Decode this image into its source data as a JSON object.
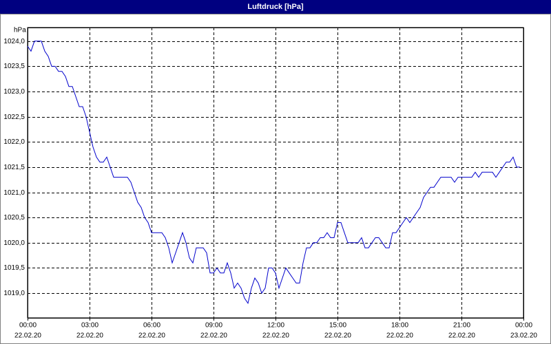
{
  "chart_data": {
    "type": "line",
    "title": "Luftdruck [hPa]",
    "y_label": "hPa",
    "x": [
      0,
      10,
      20,
      30,
      40,
      50,
      60,
      70,
      80,
      90,
      100,
      110,
      120,
      130,
      140,
      150,
      160,
      170,
      180,
      190,
      200,
      210,
      220,
      230,
      240,
      250,
      260,
      270,
      280,
      290,
      300,
      310,
      320,
      330,
      340,
      350,
      360,
      370,
      380,
      390,
      400,
      410,
      420,
      430,
      440,
      450,
      460,
      470,
      480,
      490,
      500,
      510,
      520,
      530,
      540,
      550,
      560,
      570,
      580,
      590,
      600,
      610,
      620,
      630,
      640,
      650,
      660,
      670,
      680,
      690,
      700,
      710,
      720,
      730,
      740,
      750,
      760,
      770,
      780,
      790,
      800,
      810,
      820,
      830,
      840,
      850,
      860,
      870,
      880,
      890,
      900,
      910,
      920,
      930,
      940,
      950,
      960,
      970,
      980,
      990,
      1000,
      1010,
      1020,
      1030,
      1040,
      1050,
      1060,
      1070,
      1080,
      1090,
      1100,
      1110,
      1120,
      1130,
      1140,
      1150,
      1160,
      1170,
      1180,
      1190,
      1200,
      1210,
      1220,
      1230,
      1240,
      1250,
      1260,
      1270,
      1280,
      1290,
      1300,
      1310,
      1320,
      1330,
      1340,
      1350,
      1360,
      1370,
      1380,
      1390,
      1400,
      1410,
      1420,
      1430
    ],
    "series": [
      {
        "color": "#0000cc",
        "values": [
          1023.9,
          1023.8,
          1024.0,
          1024.0,
          1024.0,
          1023.8,
          1023.7,
          1023.5,
          1023.5,
          1023.4,
          1023.4,
          1023.3,
          1023.1,
          1023.1,
          1022.9,
          1022.7,
          1022.7,
          1022.5,
          1022.2,
          1021.9,
          1021.7,
          1021.6,
          1021.6,
          1021.7,
          1021.5,
          1021.3,
          1021.3,
          1021.3,
          1021.3,
          1021.3,
          1021.2,
          1021.0,
          1020.8,
          1020.7,
          1020.5,
          1020.4,
          1020.2,
          1020.2,
          1020.2,
          1020.2,
          1020.1,
          1019.9,
          1019.6,
          1019.8,
          1020.0,
          1020.2,
          1020.0,
          1019.7,
          1019.6,
          1019.9,
          1019.9,
          1019.9,
          1019.8,
          1019.4,
          1019.4,
          1019.5,
          1019.4,
          1019.4,
          1019.6,
          1019.4,
          1019.1,
          1019.2,
          1019.1,
          1018.9,
          1018.8,
          1019.1,
          1019.3,
          1019.2,
          1019.0,
          1019.1,
          1019.5,
          1019.5,
          1019.4,
          1019.1,
          1019.3,
          1019.5,
          1019.4,
          1019.3,
          1019.2,
          1019.2,
          1019.6,
          1019.9,
          1019.9,
          1020.0,
          1020.0,
          1020.1,
          1020.1,
          1020.2,
          1020.1,
          1020.1,
          1020.4,
          1020.4,
          1020.2,
          1020.0,
          1020.0,
          1020.0,
          1020.0,
          1020.1,
          1019.9,
          1019.9,
          1020.0,
          1020.1,
          1020.1,
          1020.0,
          1019.9,
          1019.9,
          1020.2,
          1020.2,
          1020.3,
          1020.4,
          1020.5,
          1020.4,
          1020.5,
          1020.6,
          1020.7,
          1020.9,
          1021.0,
          1021.1,
          1021.1,
          1021.2,
          1021.3,
          1021.3,
          1021.3,
          1021.3,
          1021.2,
          1021.3,
          1021.3,
          1021.3,
          1021.3,
          1021.3,
          1021.4,
          1021.3,
          1021.4,
          1021.4,
          1021.4,
          1021.4,
          1021.3,
          1021.4,
          1021.5,
          1021.6,
          1021.6,
          1021.7,
          1021.5,
          1021.5
        ]
      }
    ],
    "xlim": [
      0,
      1440
    ],
    "xticks": [
      {
        "value": 0,
        "label": "00:00",
        "date": "22.02.20"
      },
      {
        "value": 180,
        "label": "03:00",
        "date": "22.02.20"
      },
      {
        "value": 360,
        "label": "06:00",
        "date": "22.02.20"
      },
      {
        "value": 540,
        "label": "09:00",
        "date": "22.02.20"
      },
      {
        "value": 720,
        "label": "12:00",
        "date": "22.02.20"
      },
      {
        "value": 900,
        "label": "15:00",
        "date": "22.02.20"
      },
      {
        "value": 1080,
        "label": "18:00",
        "date": "22.02.20"
      },
      {
        "value": 1260,
        "label": "21:00",
        "date": "22.02.20"
      },
      {
        "value": 1440,
        "label": "00:00",
        "date": "23.02.20"
      }
    ],
    "ylim": [
      1018.51,
      1024.27
    ],
    "yticks": [
      {
        "value": 1019,
        "label": "1019,0"
      },
      {
        "value": 1019.5,
        "label": "1019,5"
      },
      {
        "value": 1020,
        "label": "1020,0"
      },
      {
        "value": 1020.5,
        "label": "1020,5"
      },
      {
        "value": 1021,
        "label": "1021,0"
      },
      {
        "value": 1021.5,
        "label": "1021,5"
      },
      {
        "value": 1022,
        "label": "1022,0"
      },
      {
        "value": 1022.5,
        "label": "1022,5"
      },
      {
        "value": 1023,
        "label": "1023,0"
      },
      {
        "value": 1023.5,
        "label": "1023,5"
      },
      {
        "value": 1024,
        "label": "1024,0"
      }
    ],
    "grid": true
  }
}
